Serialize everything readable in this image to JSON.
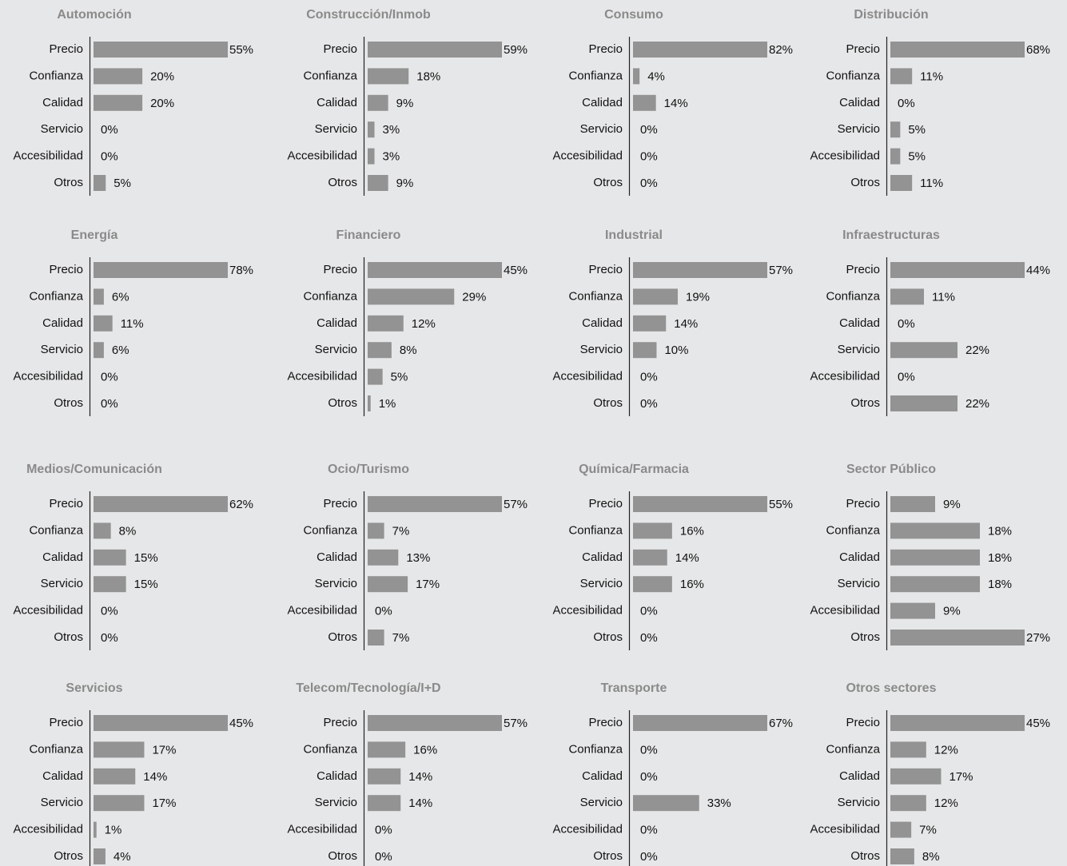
{
  "chart_data": [
    {
      "type": "bar",
      "title": "Automoción",
      "categories": [
        "Precio",
        "Confianza",
        "Calidad",
        "Servicio",
        "Accesibilidad",
        "Otros"
      ],
      "values": [
        55,
        20,
        20,
        0,
        0,
        5
      ],
      "value_labels": [
        "55%",
        "20%",
        "20%",
        "0%",
        "0%",
        "5%"
      ],
      "color": "#939393"
    },
    {
      "type": "bar",
      "title": "Construcción/Inmob",
      "categories": [
        "Precio",
        "Confianza",
        "Calidad",
        "Servicio",
        "Accesibilidad",
        "Otros"
      ],
      "values": [
        59,
        18,
        9,
        3,
        3,
        9
      ],
      "value_labels": [
        "59%",
        "18%",
        "9%",
        "3%",
        "3%",
        "9%"
      ],
      "color": "#939393"
    },
    {
      "type": "bar",
      "title": "Consumo",
      "categories": [
        "Precio",
        "Confianza",
        "Calidad",
        "Servicio",
        "Accesibilidad",
        "Otros"
      ],
      "values": [
        82,
        4,
        14,
        0,
        0,
        0
      ],
      "value_labels": [
        "82%",
        "4%",
        "14%",
        "0%",
        "0%",
        "0%"
      ],
      "color": "#939393"
    },
    {
      "type": "bar",
      "title": "Distribución",
      "categories": [
        "Precio",
        "Confianza",
        "Calidad",
        "Servicio",
        "Accesibilidad",
        "Otros"
      ],
      "values": [
        68,
        11,
        0,
        5,
        5,
        11
      ],
      "value_labels": [
        "68%",
        "11%",
        "0%",
        "5%",
        "5%",
        "11%"
      ],
      "color": "#939393"
    },
    {
      "type": "bar",
      "title": "Energía",
      "categories": [
        "Precio",
        "Confianza",
        "Calidad",
        "Servicio",
        "Accesibilidad",
        "Otros"
      ],
      "values": [
        78,
        6,
        11,
        6,
        0,
        0
      ],
      "value_labels": [
        "78%",
        "6%",
        "11%",
        "6%",
        "0%",
        "0%"
      ],
      "color": "#939393"
    },
    {
      "type": "bar",
      "title": "Financiero",
      "categories": [
        "Precio",
        "Confianza",
        "Calidad",
        "Servicio",
        "Accesibilidad",
        "Otros"
      ],
      "values": [
        45,
        29,
        12,
        8,
        5,
        1
      ],
      "value_labels": [
        "45%",
        "29%",
        "12%",
        "8%",
        "5%",
        "1%"
      ],
      "color": "#939393"
    },
    {
      "type": "bar",
      "title": "Industrial",
      "categories": [
        "Precio",
        "Confianza",
        "Calidad",
        "Servicio",
        "Accesibilidad",
        "Otros"
      ],
      "values": [
        57,
        19,
        14,
        10,
        0,
        0
      ],
      "value_labels": [
        "57%",
        "19%",
        "14%",
        "10%",
        "0%",
        "0%"
      ],
      "color": "#939393"
    },
    {
      "type": "bar",
      "title": "Infraestructuras",
      "categories": [
        "Precio",
        "Confianza",
        "Calidad",
        "Servicio",
        "Accesibilidad",
        "Otros"
      ],
      "values": [
        44,
        11,
        0,
        22,
        0,
        22
      ],
      "value_labels": [
        "44%",
        "11%",
        "0%",
        "22%",
        "0%",
        "22%"
      ],
      "color": "#939393"
    },
    {
      "type": "bar",
      "title": "Medios/Comunicación",
      "categories": [
        "Precio",
        "Confianza",
        "Calidad",
        "Servicio",
        "Accesibilidad",
        "Otros"
      ],
      "values": [
        62,
        8,
        15,
        15,
        0,
        0
      ],
      "value_labels": [
        "62%",
        "8%",
        "15%",
        "15%",
        "0%",
        "0%"
      ],
      "color": "#939393"
    },
    {
      "type": "bar",
      "title": "Ocio/Turismo",
      "categories": [
        "Precio",
        "Confianza",
        "Calidad",
        "Servicio",
        "Accesibilidad",
        "Otros"
      ],
      "values": [
        57,
        7,
        13,
        17,
        0,
        7
      ],
      "value_labels": [
        "57%",
        "7%",
        "13%",
        "17%",
        "0%",
        "7%"
      ],
      "color": "#939393"
    },
    {
      "type": "bar",
      "title": "Química/Farmacia",
      "categories": [
        "Precio",
        "Confianza",
        "Calidad",
        "Servicio",
        "Accesibilidad",
        "Otros"
      ],
      "values": [
        55,
        16,
        14,
        16,
        0,
        0
      ],
      "value_labels": [
        "55%",
        "16%",
        "14%",
        "16%",
        "0%",
        "0%"
      ],
      "color": "#939393"
    },
    {
      "type": "bar",
      "title": "Sector Público",
      "categories": [
        "Precio",
        "Confianza",
        "Calidad",
        "Servicio",
        "Accesibilidad",
        "Otros"
      ],
      "values": [
        9,
        18,
        18,
        18,
        9,
        27
      ],
      "value_labels": [
        "9%",
        "18%",
        "18%",
        "18%",
        "9%",
        "27%"
      ],
      "color": "#939393"
    },
    {
      "type": "bar",
      "title": "Servicios",
      "categories": [
        "Precio",
        "Confianza",
        "Calidad",
        "Servicio",
        "Accesibilidad",
        "Otros"
      ],
      "values": [
        45,
        17,
        14,
        17,
        1,
        4
      ],
      "value_labels": [
        "45%",
        "17%",
        "14%",
        "17%",
        "1%",
        "4%"
      ],
      "color": "#939393"
    },
    {
      "type": "bar",
      "title": "Telecom/Tecnología/I+D",
      "categories": [
        "Precio",
        "Confianza",
        "Calidad",
        "Servicio",
        "Accesibilidad",
        "Otros"
      ],
      "values": [
        57,
        16,
        14,
        14,
        0,
        0
      ],
      "value_labels": [
        "57%",
        "16%",
        "14%",
        "14%",
        "0%",
        "0%"
      ],
      "color": "#939393"
    },
    {
      "type": "bar",
      "title": "Transporte",
      "categories": [
        "Precio",
        "Confianza",
        "Calidad",
        "Servicio",
        "Accesibilidad",
        "Otros"
      ],
      "values": [
        67,
        0,
        0,
        33,
        0,
        0
      ],
      "value_labels": [
        "67%",
        "0%",
        "0%",
        "33%",
        "0%",
        "0%"
      ],
      "color": "#939393"
    },
    {
      "type": "bar",
      "title": "Otros sectores",
      "categories": [
        "Precio",
        "Confianza",
        "Calidad",
        "Servicio",
        "Accesibilidad",
        "Otros"
      ],
      "values": [
        45,
        12,
        17,
        12,
        7,
        8
      ],
      "value_labels": [
        "45%",
        "12%",
        "17%",
        "12%",
        "7%",
        "8%"
      ],
      "color": "#939393"
    }
  ]
}
